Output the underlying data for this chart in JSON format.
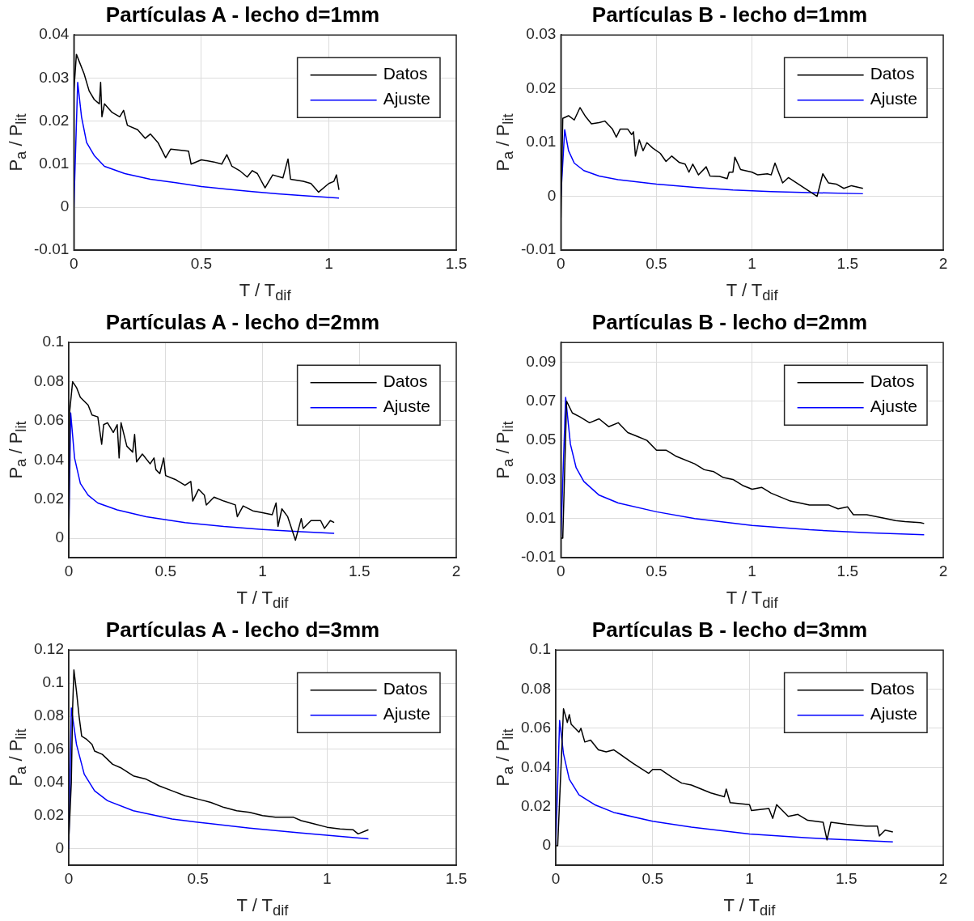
{
  "chart_data": [
    {
      "type": "line",
      "title": "Partículas A - lecho d=1mm",
      "xlabel": "T / T$_{dif}$",
      "ylabel": "P$_{a}$ / P$_{lit}$",
      "xlim": [
        0,
        1.5
      ],
      "xticks": [
        0,
        0.5,
        1,
        1.5
      ],
      "ylim": [
        -0.01,
        0.04
      ],
      "yticks": [
        -0.01,
        0,
        0.01,
        0.02,
        0.03,
        0.04
      ],
      "grid": true,
      "legend": "top right",
      "series": [
        {
          "name": "Datos",
          "color": "#000000",
          "x": [
            0,
            0.01,
            0.02,
            0.04,
            0.06,
            0.08,
            0.1,
            0.105,
            0.11,
            0.12,
            0.15,
            0.18,
            0.195,
            0.21,
            0.25,
            0.28,
            0.3,
            0.33,
            0.36,
            0.38,
            0.45,
            0.46,
            0.5,
            0.55,
            0.58,
            0.6,
            0.62,
            0.65,
            0.68,
            0.7,
            0.72,
            0.75,
            0.78,
            0.82,
            0.84,
            0.85,
            0.9,
            0.93,
            0.96,
            1.0,
            1.02,
            1.03,
            1.04
          ],
          "values": [
            0.027,
            0.0355,
            0.034,
            0.031,
            0.027,
            0.025,
            0.024,
            0.029,
            0.021,
            0.024,
            0.022,
            0.021,
            0.0225,
            0.019,
            0.018,
            0.016,
            0.017,
            0.015,
            0.0115,
            0.0135,
            0.013,
            0.01,
            0.011,
            0.0105,
            0.01,
            0.0122,
            0.0095,
            0.0085,
            0.007,
            0.0085,
            0.0078,
            0.0045,
            0.0075,
            0.0068,
            0.0112,
            0.0065,
            0.006,
            0.0055,
            0.0035,
            0.0055,
            0.006,
            0.0075,
            0.004
          ]
        },
        {
          "name": "Ajuste",
          "color": "#0000ff",
          "x": [
            0,
            0.015,
            0.03,
            0.05,
            0.08,
            0.12,
            0.2,
            0.3,
            0.4,
            0.5,
            0.6,
            0.7,
            0.8,
            0.9,
            1.04
          ],
          "values": [
            0,
            0.029,
            0.021,
            0.015,
            0.012,
            0.0095,
            0.0078,
            0.0065,
            0.0057,
            0.0048,
            0.0042,
            0.0036,
            0.0031,
            0.0027,
            0.0021
          ]
        }
      ]
    },
    {
      "type": "line",
      "title": "Partículas B - lecho d=1mm",
      "xlabel": "T / T$_{dif}$",
      "ylabel": "P$_{a}$ / P$_{lit}$",
      "xlim": [
        0,
        2
      ],
      "xticks": [
        0,
        0.5,
        1,
        1.5,
        2
      ],
      "ylim": [
        -0.01,
        0.03
      ],
      "yticks": [
        -0.01,
        0,
        0.01,
        0.02,
        0.03
      ],
      "grid": true,
      "legend": "top right",
      "series": [
        {
          "name": "Datos",
          "color": "#000000",
          "x": [
            0,
            0.01,
            0.04,
            0.07,
            0.1,
            0.13,
            0.16,
            0.2,
            0.23,
            0.27,
            0.29,
            0.31,
            0.35,
            0.37,
            0.38,
            0.39,
            0.41,
            0.43,
            0.45,
            0.48,
            0.52,
            0.55,
            0.58,
            0.62,
            0.65,
            0.67,
            0.69,
            0.72,
            0.76,
            0.78,
            0.83,
            0.87,
            0.88,
            0.9,
            0.91,
            0.94,
            1.0,
            1.03,
            1.08,
            1.1,
            1.12,
            1.16,
            1.19,
            1.34,
            1.37,
            1.4,
            1.44,
            1.48,
            1.52,
            1.58
          ],
          "values": [
            -0.004,
            0.0145,
            0.015,
            0.0142,
            0.0165,
            0.0148,
            0.0135,
            0.0137,
            0.014,
            0.0125,
            0.011,
            0.0125,
            0.0125,
            0.0115,
            0.012,
            0.0075,
            0.0105,
            0.0085,
            0.01,
            0.009,
            0.008,
            0.0065,
            0.0075,
            0.0063,
            0.006,
            0.0045,
            0.006,
            0.004,
            0.0055,
            0.0038,
            0.0037,
            0.0033,
            0.0045,
            0.0045,
            0.0073,
            0.005,
            0.0045,
            0.004,
            0.0042,
            0.004,
            0.0062,
            0.0025,
            0.0035,
            0,
            0.0042,
            0.0025,
            0.0023,
            0.0015,
            0.002,
            0.0015
          ]
        },
        {
          "name": "Ajuste",
          "color": "#0000ff",
          "x": [
            0,
            0.02,
            0.04,
            0.07,
            0.12,
            0.2,
            0.3,
            0.5,
            0.7,
            0.9,
            1.1,
            1.3,
            1.58
          ],
          "values": [
            0,
            0.0124,
            0.0085,
            0.0062,
            0.0048,
            0.0038,
            0.0031,
            0.0023,
            0.0017,
            0.0012,
            0.0009,
            0.0007,
            0.0005
          ]
        }
      ]
    },
    {
      "type": "line",
      "title": "Partículas A - lecho d=2mm",
      "xlabel": "T / T$_{dif}$",
      "ylabel": "P$_{a}$ / P$_{lit}$",
      "xlim": [
        0,
        2
      ],
      "xticks": [
        0,
        0.5,
        1,
        1.5,
        2
      ],
      "ylim": [
        -0.01,
        0.1
      ],
      "yticks": [
        0,
        0.02,
        0.04,
        0.06,
        0.08,
        0.1
      ],
      "grid": true,
      "legend": "top right",
      "series": [
        {
          "name": "Datos",
          "color": "#000000",
          "x": [
            0,
            0.005,
            0.02,
            0.04,
            0.06,
            0.1,
            0.12,
            0.15,
            0.17,
            0.18,
            0.2,
            0.23,
            0.25,
            0.26,
            0.27,
            0.3,
            0.33,
            0.34,
            0.35,
            0.38,
            0.42,
            0.44,
            0.45,
            0.47,
            0.49,
            0.5,
            0.55,
            0.6,
            0.63,
            0.64,
            0.67,
            0.7,
            0.71,
            0.75,
            0.8,
            0.86,
            0.87,
            0.9,
            0.95,
            1.0,
            1.05,
            1.07,
            1.08,
            1.1,
            1.13,
            1.17,
            1.2,
            1.21,
            1.25,
            1.3,
            1.32,
            1.35,
            1.37
          ],
          "values": [
            -0.01,
            0.065,
            0.08,
            0.077,
            0.072,
            0.068,
            0.063,
            0.062,
            0.048,
            0.058,
            0.059,
            0.054,
            0.058,
            0.041,
            0.059,
            0.047,
            0.044,
            0.053,
            0.039,
            0.043,
            0.038,
            0.041,
            0.035,
            0.033,
            0.041,
            0.032,
            0.03,
            0.027,
            0.029,
            0.019,
            0.025,
            0.022,
            0.017,
            0.021,
            0.019,
            0.017,
            0.011,
            0.0165,
            0.014,
            0.013,
            0.012,
            0.018,
            0.006,
            0.015,
            0.011,
            -0.001,
            0.01,
            0.005,
            0.009,
            0.009,
            0.005,
            0.009,
            0.008
          ]
        },
        {
          "name": "Ajuste",
          "color": "#0000ff",
          "x": [
            0,
            0.01,
            0.03,
            0.06,
            0.1,
            0.15,
            0.25,
            0.4,
            0.6,
            0.8,
            1.0,
            1.2,
            1.37
          ],
          "values": [
            0,
            0.064,
            0.041,
            0.028,
            0.022,
            0.018,
            0.0145,
            0.011,
            0.008,
            0.006,
            0.0045,
            0.0033,
            0.0025
          ]
        }
      ]
    },
    {
      "type": "line",
      "title": "Partículas B - lecho d=2mm",
      "xlabel": "T / T$_{dif}$",
      "ylabel": "P$_{a}$ / P$_{lit}$",
      "xlim": [
        0,
        2
      ],
      "xticks": [
        0,
        0.5,
        1,
        1.5,
        2
      ],
      "ylim": [
        -0.01,
        0.1
      ],
      "yticks": [
        -0.01,
        0.01,
        0.03,
        0.05,
        0.07,
        0.09
      ],
      "grid": true,
      "legend": "top right",
      "series": [
        {
          "name": "Datos",
          "color": "#000000",
          "x": [
            0,
            0.01,
            0.03,
            0.06,
            0.1,
            0.15,
            0.2,
            0.25,
            0.3,
            0.35,
            0.4,
            0.45,
            0.5,
            0.55,
            0.6,
            0.7,
            0.75,
            0.8,
            0.85,
            0.9,
            0.95,
            1.0,
            1.05,
            1.1,
            1.2,
            1.3,
            1.4,
            1.45,
            1.5,
            1.53,
            1.6,
            1.7,
            1.75,
            1.8,
            1.88,
            1.9
          ],
          "values": [
            0,
            0,
            0.07,
            0.064,
            0.062,
            0.059,
            0.061,
            0.057,
            0.059,
            0.054,
            0.052,
            0.05,
            0.045,
            0.045,
            0.042,
            0.038,
            0.035,
            0.034,
            0.031,
            0.03,
            0.027,
            0.025,
            0.026,
            0.023,
            0.019,
            0.017,
            0.017,
            0.015,
            0.016,
            0.012,
            0.012,
            0.01,
            0.009,
            0.0085,
            0.008,
            0.0075
          ]
        },
        {
          "name": "Ajuste",
          "color": "#0000ff",
          "x": [
            0,
            0.025,
            0.05,
            0.08,
            0.12,
            0.2,
            0.3,
            0.5,
            0.7,
            1.0,
            1.3,
            1.6,
            1.9
          ],
          "values": [
            0,
            0.072,
            0.048,
            0.036,
            0.029,
            0.022,
            0.018,
            0.0135,
            0.01,
            0.0065,
            0.0043,
            0.0028,
            0.0018
          ]
        }
      ]
    },
    {
      "type": "line",
      "title": "Partículas A - lecho d=3mm",
      "xlabel": "T / T$_{dif}$",
      "ylabel": "P$_{a}$ / P$_{lit}$",
      "xlim": [
        0,
        1.5
      ],
      "xticks": [
        0,
        0.5,
        1,
        1.5
      ],
      "ylim": [
        -0.01,
        0.12
      ],
      "yticks": [
        0,
        0.02,
        0.04,
        0.06,
        0.08,
        0.1,
        0.12
      ],
      "grid": true,
      "legend": "top right",
      "series": [
        {
          "name": "Datos",
          "color": "#000000",
          "x": [
            0,
            0.01,
            0.015,
            0.02,
            0.03,
            0.04,
            0.05,
            0.07,
            0.09,
            0.1,
            0.13,
            0.17,
            0.2,
            0.25,
            0.3,
            0.35,
            0.4,
            0.45,
            0.5,
            0.55,
            0.6,
            0.65,
            0.7,
            0.75,
            0.8,
            0.87,
            0.9,
            0.95,
            1.0,
            1.05,
            1.1,
            1.12,
            1.16
          ],
          "values": [
            0.005,
            0.04,
            0.085,
            0.108,
            0.095,
            0.08,
            0.068,
            0.066,
            0.063,
            0.059,
            0.057,
            0.051,
            0.049,
            0.044,
            0.042,
            0.038,
            0.035,
            0.032,
            0.03,
            0.028,
            0.025,
            0.023,
            0.022,
            0.02,
            0.019,
            0.019,
            0.017,
            0.015,
            0.013,
            0.012,
            0.0115,
            0.009,
            0.0115
          ]
        },
        {
          "name": "Ajuste",
          "color": "#0000ff",
          "x": [
            0,
            0.01,
            0.03,
            0.06,
            0.1,
            0.15,
            0.25,
            0.4,
            0.5,
            0.7,
            0.9,
            1.16
          ],
          "values": [
            0,
            0.085,
            0.063,
            0.045,
            0.035,
            0.029,
            0.023,
            0.018,
            0.016,
            0.0125,
            0.0095,
            0.006
          ]
        }
      ]
    },
    {
      "type": "line",
      "title": "Partículas B - lecho d=3mm",
      "xlabel": "T / T$_{dif}$",
      "ylabel": "P$_{a}$ / P$_{lit}$",
      "xlim": [
        0,
        2
      ],
      "xticks": [
        0,
        0.5,
        1,
        1.5,
        2
      ],
      "ylim": [
        -0.01,
        0.1
      ],
      "yticks": [
        0,
        0.02,
        0.04,
        0.06,
        0.08,
        0.1
      ],
      "grid": true,
      "legend": "top right",
      "series": [
        {
          "name": "Datos",
          "color": "#000000",
          "x": [
            0,
            0.01,
            0.04,
            0.06,
            0.07,
            0.08,
            0.12,
            0.13,
            0.15,
            0.18,
            0.22,
            0.26,
            0.3,
            0.4,
            0.48,
            0.5,
            0.54,
            0.6,
            0.65,
            0.7,
            0.8,
            0.87,
            0.88,
            0.9,
            1.0,
            1.01,
            1.1,
            1.12,
            1.14,
            1.2,
            1.25,
            1.3,
            1.38,
            1.4,
            1.42,
            1.5,
            1.6,
            1.66,
            1.67,
            1.7,
            1.74
          ],
          "values": [
            0,
            0,
            0.07,
            0.063,
            0.067,
            0.062,
            0.058,
            0.06,
            0.053,
            0.054,
            0.049,
            0.048,
            0.049,
            0.042,
            0.037,
            0.039,
            0.039,
            0.035,
            0.032,
            0.031,
            0.027,
            0.025,
            0.029,
            0.022,
            0.021,
            0.018,
            0.019,
            0.014,
            0.021,
            0.015,
            0.016,
            0.013,
            0.012,
            0.003,
            0.012,
            0.011,
            0.01,
            0.01,
            0.005,
            0.008,
            0.007
          ]
        },
        {
          "name": "Ajuste",
          "color": "#0000ff",
          "x": [
            0,
            0.02,
            0.04,
            0.07,
            0.12,
            0.2,
            0.3,
            0.5,
            0.7,
            1.0,
            1.3,
            1.74
          ],
          "values": [
            0,
            0.064,
            0.047,
            0.034,
            0.026,
            0.021,
            0.017,
            0.0125,
            0.0095,
            0.006,
            0.004,
            0.002
          ]
        }
      ]
    }
  ]
}
